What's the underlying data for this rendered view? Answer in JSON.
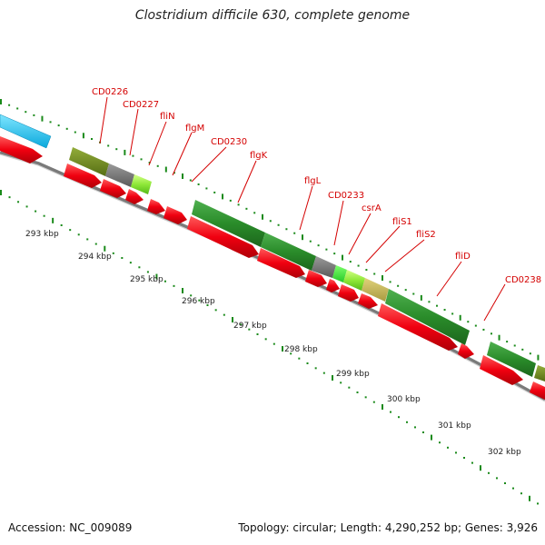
{
  "title": "Clostridium difficile 630, complete genome",
  "footer": {
    "accession": "Accession: NC_009089",
    "summary": "Topology: circular; Length: 4,290,252 bp; Genes: 3,926"
  },
  "scale_labels": [
    "293 kbp",
    "294 kbp",
    "295 kbp",
    "296 kbp",
    "297 kbp",
    "298 kbp",
    "299 kbp",
    "300 kbp",
    "301 kbp",
    "302 kbp"
  ],
  "gene_labels": [
    "CD0226",
    "CD0227",
    "fliN",
    "flgM",
    "CD0230",
    "flgK",
    "flgL",
    "CD0233",
    "csrA",
    "fliS1",
    "fliS2",
    "fliD",
    "CD0238"
  ],
  "colors": {
    "cds_forward": "#e8000a",
    "label": "#d40000",
    "dots": "#1a8a1a",
    "backbone": "#888888",
    "cyan_block": "#1ec8f0",
    "olive_block": "#708f1e",
    "gray_block": "#777777",
    "lightgreen_block": "#9cef3c",
    "darkgreen_block": "#2a8c2a"
  }
}
